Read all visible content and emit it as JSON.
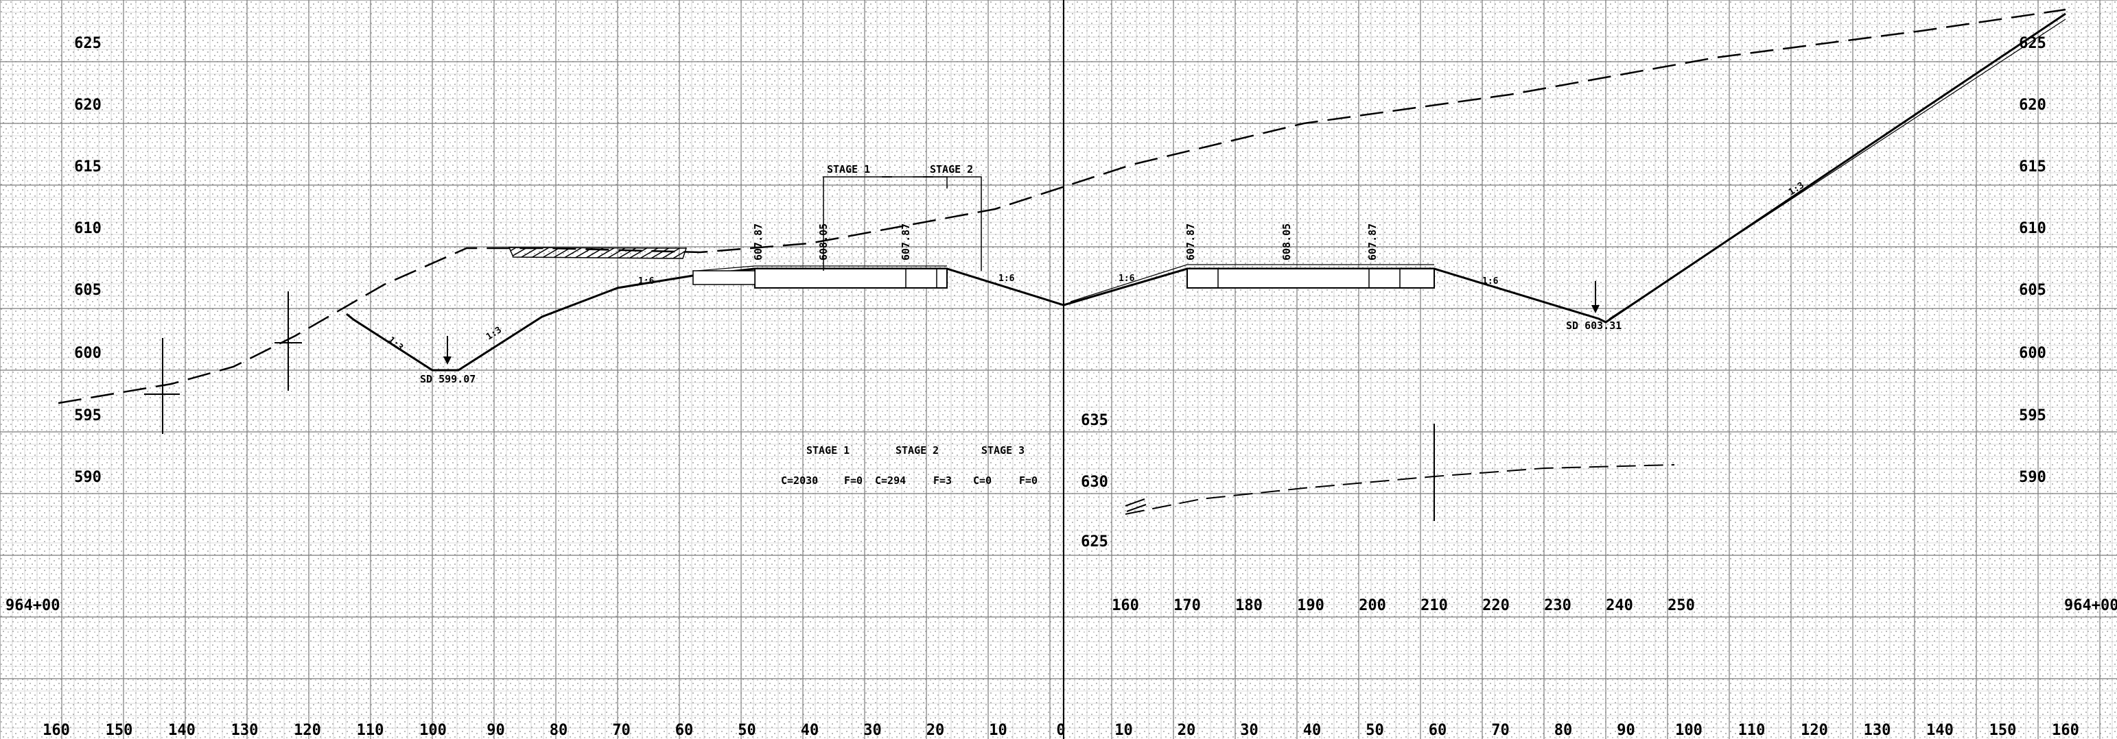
{
  "station": "964+00",
  "elevation_labels_left": [
    "625",
    "620",
    "615",
    "610",
    "605",
    "600",
    "595",
    "590"
  ],
  "elevation_labels_right": [
    "625",
    "620",
    "615",
    "610",
    "605",
    "600",
    "595",
    "590"
  ],
  "inset_elevation_labels": [
    "635",
    "630",
    "625"
  ],
  "offset_labels": [
    "160",
    "150",
    "140",
    "130",
    "120",
    "110",
    "100",
    "90",
    "80",
    "70",
    "60",
    "50",
    "40",
    "30",
    "20",
    "10",
    "0",
    "10",
    "20",
    "30",
    "40",
    "50",
    "60",
    "70",
    "80",
    "90",
    "100",
    "110",
    "120",
    "130",
    "140",
    "150",
    "160"
  ],
  "inset_offset_labels": [
    "160",
    "170",
    "180",
    "190",
    "200",
    "210",
    "220",
    "230",
    "240",
    "250"
  ],
  "ditch_left": "SD 599.07",
  "ditch_right": "SD 603.31",
  "stage_headers": {
    "stage1": "STAGE 1",
    "stage2": "STAGE 2"
  },
  "stage_table_headers": [
    "STAGE 1",
    "STAGE 2",
    "STAGE 3"
  ],
  "stage_table_values": [
    "C=2030",
    "F=0",
    "C=294",
    "F=3",
    "C=0",
    "F=0"
  ],
  "slope_labels": [
    "1:3",
    "1:3",
    "1:6",
    "1:6",
    "1:6",
    "1:6",
    "1:3"
  ],
  "pavement_elevations_left": [
    "607.87",
    "608.05",
    "607.87"
  ],
  "pavement_elevations_right": [
    "607.87",
    "608.05",
    "607.87"
  ]
}
